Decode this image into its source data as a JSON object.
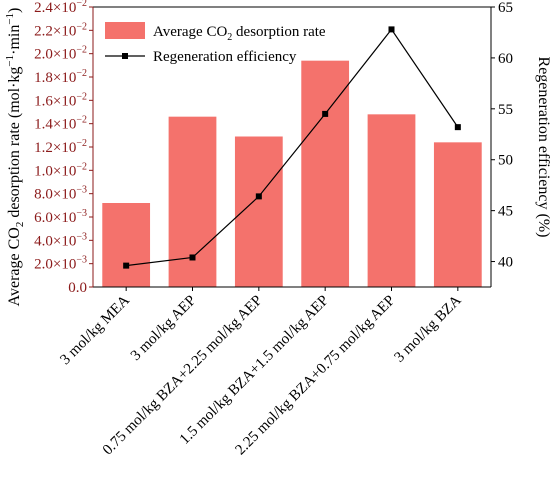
{
  "chart_data": {
    "type": "bar+line",
    "categories": [
      "3 mol/kg MEA",
      "3 mol/kg AEP",
      "0.75 mol/kg BZA+2.25 mol/kg AEP",
      "1.5 mol/kg BZA+1.5 mol/kg AEP",
      "2.25 mol/kg BZA+0.75 mol/kg AEP",
      "3 mol/kg BZA"
    ],
    "left_axis": {
      "label_main": "Average CO",
      "label_sub": "2",
      "label_rest": " desorption rate (mol·kg",
      "label_sup": "−1",
      "label_rest2": "·min",
      "label_sup2": "−1",
      "label_end": ")",
      "range": [
        0,
        0.024
      ],
      "ticks": [
        {
          "value": 0.0,
          "label": "0.0"
        },
        {
          "value": 0.002,
          "mant": "2.0×10",
          "exp": "−3"
        },
        {
          "value": 0.004,
          "mant": "4.0×10",
          "exp": "−3"
        },
        {
          "value": 0.006,
          "mant": "6.0×10",
          "exp": "−3"
        },
        {
          "value": 0.008,
          "mant": "8.0×10",
          "exp": "−3"
        },
        {
          "value": 0.01,
          "mant": "1.0×10",
          "exp": "−2"
        },
        {
          "value": 0.012,
          "mant": "1.2×10",
          "exp": "−2"
        },
        {
          "value": 0.014,
          "mant": "1.4×10",
          "exp": "−2"
        },
        {
          "value": 0.016,
          "mant": "1.6×10",
          "exp": "−2"
        },
        {
          "value": 0.018,
          "mant": "1.8×10",
          "exp": "−2"
        },
        {
          "value": 0.02,
          "mant": "2.0×10",
          "exp": "−2"
        },
        {
          "value": 0.022,
          "mant": "2.2×10",
          "exp": "−2"
        },
        {
          "value": 0.024,
          "mant": "2.4×10",
          "exp": "−2"
        }
      ]
    },
    "right_axis": {
      "label": "Regeneration efficiency (%)",
      "range": [
        37.5,
        65
      ],
      "ticks": [
        40,
        45,
        50,
        55,
        60,
        65
      ]
    },
    "series": [
      {
        "name_main": "Average CO",
        "name_sub": "2",
        "name_rest": " desorption rate",
        "kind": "bar",
        "axis": "left",
        "color": "#f4726c",
        "values": [
          0.0072,
          0.0146,
          0.0129,
          0.0194,
          0.0148,
          0.0124
        ]
      },
      {
        "name": "Regeneration efficiency",
        "kind": "line",
        "axis": "right",
        "color": "#000000",
        "values": [
          39.6,
          40.4,
          46.4,
          54.5,
          62.8,
          53.2
        ]
      }
    ],
    "legend_position": "top-left",
    "left_axis_color": "#8b1a1a"
  }
}
